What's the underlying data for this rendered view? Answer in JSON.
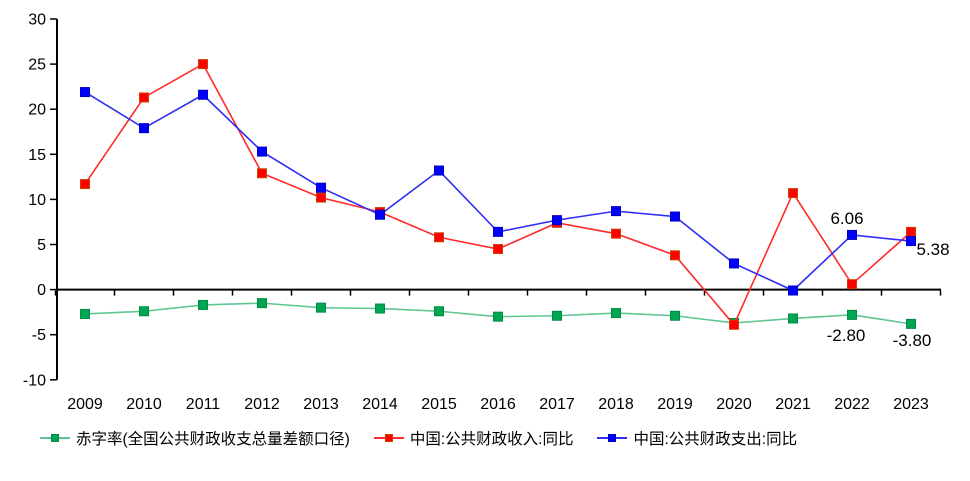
{
  "chart_data": {
    "type": "line",
    "title": "",
    "xlabel": "",
    "ylabel": "",
    "categories": [
      "2009",
      "2010",
      "2011",
      "2012",
      "2013",
      "2014",
      "2015",
      "2016",
      "2017",
      "2018",
      "2019",
      "2020",
      "2021",
      "2022",
      "2023"
    ],
    "series": [
      {
        "name": "赤字率(全国公共财政收支总量差额口径)",
        "marker_color": "#00A651",
        "marker_border": "#008C44",
        "line_color": "#5FC692",
        "values": [
          -2.7,
          -2.4,
          -1.7,
          -1.5,
          -2.0,
          -2.1,
          -2.4,
          -3.0,
          -2.9,
          -2.6,
          -2.9,
          -3.7,
          -3.2,
          -2.8,
          -3.8
        ]
      },
      {
        "name": "中国:公共财政收入:同比",
        "marker_color": "#FF0000",
        "marker_border": "#D04000",
        "line_color": "#FF2A2A",
        "values": [
          11.7,
          21.3,
          25.0,
          12.9,
          10.2,
          8.6,
          5.8,
          4.5,
          7.4,
          6.2,
          3.8,
          -3.9,
          10.7,
          0.6,
          6.4
        ]
      },
      {
        "name": "中国:公共财政支出:同比",
        "marker_color": "#0000FF",
        "marker_border": "#0000C0",
        "line_color": "#2E2EF5",
        "values": [
          21.9,
          17.9,
          21.6,
          15.3,
          11.3,
          8.3,
          13.2,
          6.4,
          7.7,
          8.7,
          8.1,
          2.9,
          -0.1,
          6.06,
          5.38
        ]
      }
    ],
    "ylim": [
      -10,
      30
    ],
    "yticks": [
      "30",
      "25",
      "20",
      "15",
      "10",
      "5",
      "0",
      "-5",
      "-10"
    ],
    "grid": false,
    "legend_position": "bottom",
    "annotations": [
      {
        "text": "6.06",
        "series": 2,
        "index": 13,
        "placement": "above"
      },
      {
        "text": "5.38",
        "series": 2,
        "index": 14,
        "placement": "right"
      },
      {
        "text": "-2.80",
        "series": 0,
        "index": 13,
        "placement": "below-left"
      },
      {
        "text": "-3.80",
        "series": 0,
        "index": 14,
        "placement": "below"
      }
    ],
    "axis_color": "#000000",
    "text_color": "#000000",
    "annotation_color": "#262626"
  }
}
